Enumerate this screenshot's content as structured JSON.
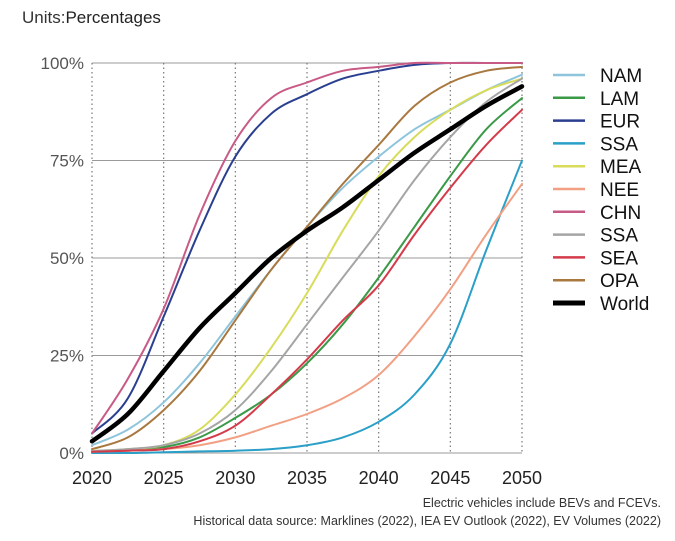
{
  "units": {
    "label": "Units:",
    "value": "Percentages"
  },
  "notes": [
    "Electric vehicles include BEVs and FCEVs.",
    "Historical data source: Marklines (2022), IEA EV Outlook (2022), EV Volumes (2022)"
  ],
  "chart_data": {
    "type": "line",
    "title": "",
    "xlabel": "",
    "ylabel": "",
    "xlim": [
      2020,
      2050
    ],
    "ylim": [
      0,
      100
    ],
    "x_ticks": [
      "2020",
      "2025",
      "2030",
      "2035",
      "2040",
      "2045",
      "2050"
    ],
    "y_ticks": [
      "0%",
      "25%",
      "50%",
      "75%",
      "100%"
    ],
    "grid": "dotted vertical at 5-year ticks, solid horizontal at 25% steps",
    "legend_position": "right",
    "x": [
      2020,
      2022.5,
      2025,
      2027.5,
      2030,
      2032.5,
      2035,
      2037.5,
      2040,
      2042.5,
      2045,
      2047.5,
      2050
    ],
    "series": [
      {
        "name": "NAM",
        "color": "#8ec5dd",
        "width": 2,
        "values": [
          2,
          6,
          13,
          23,
          35,
          47,
          58,
          68,
          76,
          83,
          88,
          93,
          97
        ]
      },
      {
        "name": "LAM",
        "color": "#3a9a47",
        "width": 2,
        "values": [
          0.5,
          0.8,
          1.5,
          4,
          9,
          15,
          23,
          33,
          45,
          58,
          71,
          83,
          91
        ]
      },
      {
        "name": "EUR",
        "color": "#2a3f8f",
        "width": 2,
        "values": [
          5,
          14,
          35,
          57,
          76,
          87,
          92,
          96,
          98,
          99.5,
          100,
          100,
          100
        ]
      },
      {
        "name": "SSA",
        "color": "#2a9fc8",
        "width": 2,
        "values": [
          0,
          0,
          0.2,
          0.4,
          0.6,
          1,
          2,
          4,
          8,
          15,
          28,
          52,
          75
        ]
      },
      {
        "name": "MEA",
        "color": "#d8dc5a",
        "width": 2,
        "values": [
          0.5,
          1,
          2,
          6,
          15,
          27,
          41,
          57,
          71,
          81,
          88,
          93,
          96
        ]
      },
      {
        "name": "NEE",
        "color": "#f2a084",
        "width": 2,
        "values": [
          0.3,
          0.6,
          1,
          2,
          4,
          7,
          10,
          14,
          20,
          30,
          42,
          56,
          69
        ]
      },
      {
        "name": "CHN",
        "color": "#c85a86",
        "width": 2,
        "values": [
          5,
          19,
          37,
          61,
          80,
          91,
          95,
          98,
          99,
          100,
          100,
          100,
          100
        ]
      },
      {
        "name": "SSA",
        "color": "#a5a5a5",
        "width": 2,
        "values": [
          0.5,
          1,
          2,
          5,
          11,
          21,
          33,
          45,
          57,
          70,
          81,
          90,
          96
        ]
      },
      {
        "name": "SEA",
        "color": "#d43b4a",
        "width": 2,
        "values": [
          0.3,
          0.6,
          1,
          3,
          7,
          15,
          24,
          34,
          43,
          56,
          68,
          79,
          88
        ]
      },
      {
        "name": "OPA",
        "color": "#a8783f",
        "width": 2,
        "values": [
          1,
          4,
          11,
          21,
          34,
          47,
          58,
          69,
          79,
          89,
          95,
          98,
          99
        ]
      },
      {
        "name": "World",
        "color": "#000000",
        "width": 4.5,
        "values": [
          3,
          10,
          21,
          32,
          41,
          50,
          57,
          63,
          70,
          77,
          83,
          89,
          94
        ]
      }
    ]
  }
}
